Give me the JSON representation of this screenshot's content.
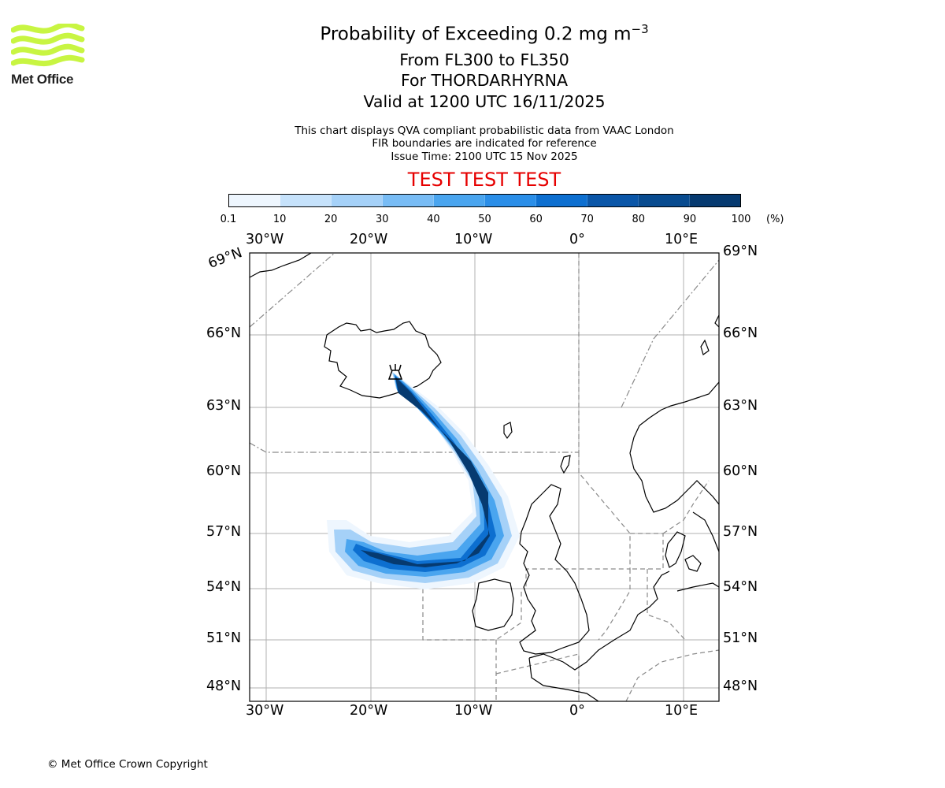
{
  "header": {
    "logo_text": "Met Office",
    "title_prefix": "Probability of Exceeding 0.2 mg m",
    "title_exponent": "−3",
    "flight_levels": "From FL300 to FL350",
    "volcano": "For THORDARHYRNA",
    "valid_time": "Valid at 1200 UTC 16/11/2025",
    "info_line_1": "This chart displays QVA compliant probabilistic data from VAAC London",
    "info_line_2": "FIR boundaries are indicated for reference",
    "issue_time": "Issue Time: 2100 UTC 15 Nov 2025",
    "test_banner": "TEST TEST TEST"
  },
  "colorbar": {
    "ticks": [
      "0.1",
      "10",
      "20",
      "30",
      "40",
      "50",
      "60",
      "70",
      "80",
      "90",
      "100"
    ],
    "unit": "(%)",
    "colors": [
      "#eef6fe",
      "#c6e2fb",
      "#a5d1f8",
      "#78bcf5",
      "#4aa5ef",
      "#2a8ee8",
      "#0d6fd0",
      "#0a56a8",
      "#084b8f",
      "#063a70"
    ]
  },
  "map": {
    "top_lon_labels": [
      "30°W",
      "20°W",
      "10°W",
      "0°",
      "10°E"
    ],
    "bottom_lon_labels": [
      "30°W",
      "20°W",
      "10°W",
      "0°",
      "10°E"
    ],
    "left_lat_labels": [
      "69°N",
      "66°N",
      "63°N",
      "60°N",
      "57°N",
      "54°N",
      "51°N",
      "48°N"
    ],
    "right_lat_labels": [
      "69°N",
      "66°N",
      "63°N",
      "60°N",
      "57°N",
      "54°N",
      "51°N",
      "48°N"
    ],
    "plume_color": "#063a70",
    "volcano_icon": "volcano-icon"
  },
  "footer": {
    "copyright": "© Met Office Crown Copyright"
  }
}
